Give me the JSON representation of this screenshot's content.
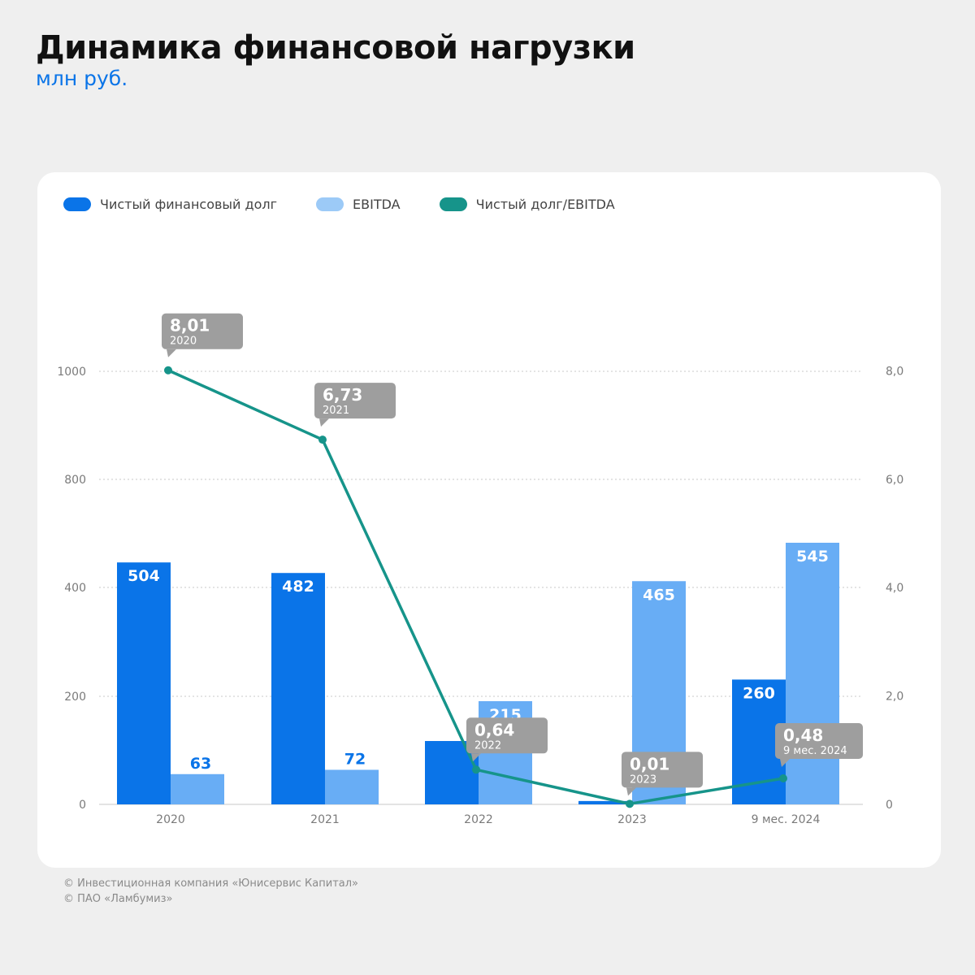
{
  "page": {
    "title": "Динамика финансовой нагрузки",
    "subtitle": "млн руб."
  },
  "legend": [
    {
      "label": "Чистый финансовый долг",
      "color": "#0a74e8"
    },
    {
      "label": "EBITDA",
      "color": "#9ccaf7"
    },
    {
      "label": "Чистый долг/EBITDA",
      "color": "#16948a"
    }
  ],
  "footer": {
    "line1": "© Инвестиционная компания «Юнисервис Капитал»",
    "line2": "© ПАО «Ламбумиз»"
  },
  "colors": {
    "debt": "#0a74e8",
    "ebitda": "#68adf5",
    "ratio": "#16948a",
    "callout": "#9e9e9e",
    "grid": "#c9c9c9",
    "axis_text": "#7a7a7a"
  },
  "chart_data": {
    "type": "bar",
    "categories": [
      "2020",
      "2021",
      "2022",
      "2023",
      "9 мес. 2024"
    ],
    "series": [
      {
        "name": "Чистый финансовый долг",
        "axis": "left",
        "values": [
          504,
          482,
          132,
          7,
          260
        ],
        "labels": [
          "504",
          "482",
          "",
          "",
          "260"
        ]
      },
      {
        "name": "EBITDA",
        "axis": "left",
        "values": [
          63,
          72,
          215,
          465,
          545
        ],
        "labels": [
          "63",
          "72",
          "215",
          "465",
          "545"
        ]
      },
      {
        "name": "Чистый долг/EBITDA",
        "type": "line",
        "axis": "right",
        "values": [
          8.01,
          6.73,
          0.64,
          0.01,
          0.48
        ],
        "callouts": [
          {
            "value": "8,01",
            "period": "2020"
          },
          {
            "value": "6,73",
            "period": "2021"
          },
          {
            "value": "0,64",
            "period": "2022"
          },
          {
            "value": "0,01",
            "period": "2023"
          },
          {
            "value": "0,48",
            "period": "9 мес. 2024"
          }
        ]
      }
    ],
    "y_left": {
      "ticks": [
        0,
        200,
        400,
        800,
        1000
      ],
      "tick_labels": [
        "0",
        "200",
        "400",
        "800",
        "1000"
      ]
    },
    "y_right": {
      "ticks": [
        0,
        2,
        4,
        6,
        8
      ],
      "tick_labels": [
        "0",
        "2,0",
        "4,0",
        "6,0",
        "8,0"
      ]
    },
    "grid": true,
    "legend_position": "top-left"
  }
}
